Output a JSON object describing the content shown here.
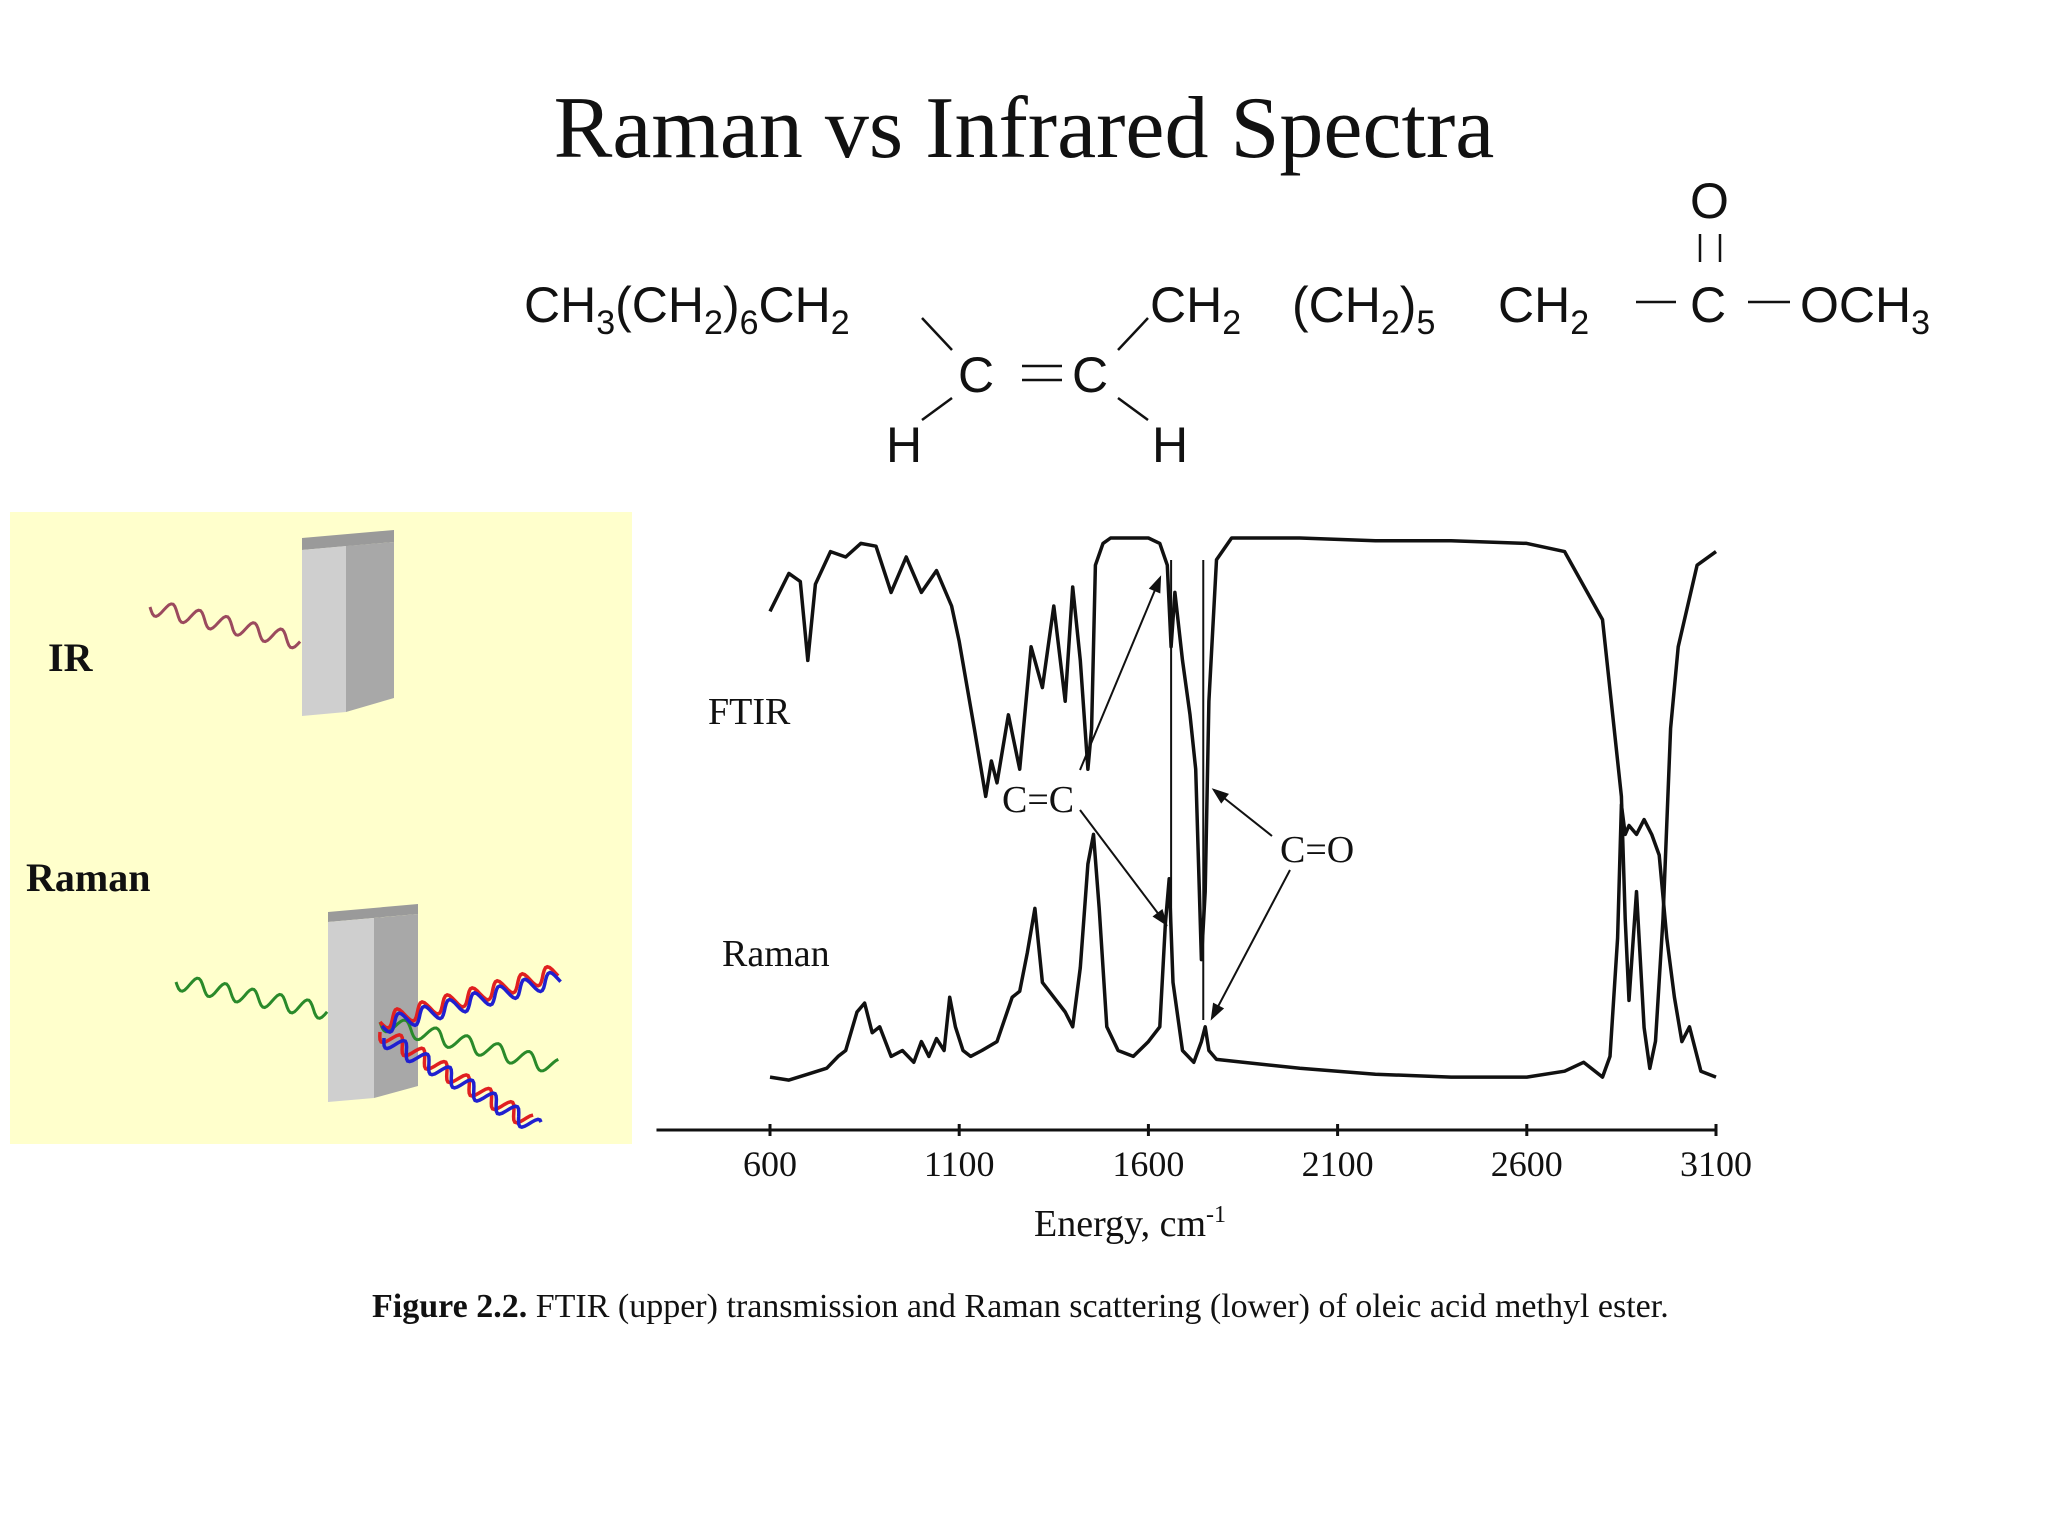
{
  "title": "Raman vs Infrared Spectra",
  "molecule": {
    "left_group": {
      "a": "CH",
      "a_sub": "3",
      "b": "(CH",
      "b_sub": "2",
      "c": ")",
      "c_sub": "6",
      "d": "CH",
      "d_sub": "2"
    },
    "alkene_left_c": "C",
    "alkene_right_c": "C",
    "h_left": "H",
    "h_right": "H",
    "right_group_1": {
      "a": "CH",
      "a_sub": "2"
    },
    "right_group_2": {
      "a": "(CH",
      "a_sub": "2",
      "b": ")",
      "b_sub": "5"
    },
    "right_group_3": {
      "a": "CH",
      "a_sub": "2"
    },
    "carbonyl_c": "C",
    "carbonyl_o": "O",
    "ester": {
      "a": "OCH",
      "a_sub": "3"
    }
  },
  "illustration": {
    "ir_label": "IR",
    "raman_label": "Raman",
    "colors": {
      "background": "#ffffcc",
      "ir_wave": "#9b4a5e",
      "incident_wave": "#2a8a2a",
      "red_wave": "#e02020",
      "blue_wave": "#2020d0",
      "block_front": "#cfcfcf",
      "block_side": "#a8a8a8"
    }
  },
  "chart_data": {
    "type": "line",
    "series": [
      {
        "name": "FTIR",
        "x": [
          600,
          650,
          680,
          700,
          720,
          760,
          800,
          840,
          880,
          920,
          960,
          1000,
          1040,
          1080,
          1100,
          1140,
          1170,
          1185,
          1200,
          1230,
          1260,
          1290,
          1320,
          1350,
          1380,
          1400,
          1420,
          1440,
          1450,
          1460,
          1480,
          1500,
          1560,
          1600,
          1630,
          1650,
          1660,
          1670,
          1690,
          1710,
          1725,
          1740,
          1750,
          1760,
          1780,
          1820,
          1900,
          2000,
          2200,
          2400,
          2600,
          2700,
          2800,
          2850,
          2860,
          2870,
          2890,
          2910,
          2925,
          2940,
          2960,
          2980,
          3000,
          3050,
          3100
        ],
        "y": [
          0.73,
          0.87,
          0.84,
          0.55,
          0.83,
          0.95,
          0.93,
          0.98,
          0.97,
          0.8,
          0.93,
          0.8,
          0.88,
          0.75,
          0.62,
          0.3,
          0.05,
          0.18,
          0.1,
          0.35,
          0.15,
          0.6,
          0.45,
          0.75,
          0.4,
          0.82,
          0.55,
          0.15,
          0.3,
          0.9,
          0.98,
          1.0,
          1.0,
          1.0,
          0.98,
          0.9,
          0.6,
          0.8,
          0.55,
          0.35,
          0.15,
          -0.55,
          -0.3,
          0.4,
          0.92,
          1.0,
          1.0,
          1.0,
          0.99,
          0.99,
          0.98,
          0.95,
          0.7,
          0.05,
          -0.4,
          -0.7,
          -0.3,
          -0.8,
          -0.95,
          -0.85,
          -0.4,
          0.3,
          0.6,
          0.9,
          0.95
        ],
        "color": "#111111"
      },
      {
        "name": "Raman",
        "x": [
          600,
          650,
          700,
          750,
          780,
          800,
          830,
          850,
          870,
          890,
          920,
          950,
          980,
          1000,
          1020,
          1040,
          1060,
          1075,
          1090,
          1110,
          1130,
          1160,
          1200,
          1240,
          1260,
          1280,
          1300,
          1320,
          1350,
          1380,
          1400,
          1420,
          1440,
          1455,
          1470,
          1490,
          1520,
          1560,
          1600,
          1630,
          1645,
          1655,
          1665,
          1690,
          1720,
          1740,
          1750,
          1760,
          1780,
          1850,
          2000,
          2100,
          2200,
          2400,
          2600,
          2700,
          2750,
          2800,
          2820,
          2840,
          2850,
          2860,
          2870,
          2890,
          2910,
          2930,
          2950,
          2970,
          2990,
          3010,
          3030,
          3060,
          3100
        ],
        "y": [
          0.03,
          0.02,
          0.04,
          0.06,
          0.1,
          0.12,
          0.25,
          0.28,
          0.18,
          0.2,
          0.1,
          0.12,
          0.08,
          0.15,
          0.1,
          0.16,
          0.12,
          0.3,
          0.2,
          0.12,
          0.1,
          0.12,
          0.15,
          0.3,
          0.32,
          0.45,
          0.6,
          0.35,
          0.3,
          0.25,
          0.2,
          0.4,
          0.75,
          0.85,
          0.6,
          0.2,
          0.12,
          0.1,
          0.15,
          0.2,
          0.55,
          0.7,
          0.35,
          0.12,
          0.08,
          0.15,
          0.2,
          0.12,
          0.09,
          0.08,
          0.06,
          0.05,
          0.04,
          0.03,
          0.03,
          0.05,
          0.08,
          0.03,
          0.1,
          0.5,
          0.95,
          0.85,
          0.88,
          0.85,
          0.9,
          0.85,
          0.78,
          0.5,
          0.3,
          0.15,
          0.2,
          0.05,
          0.03
        ],
        "color": "#111111"
      }
    ],
    "labels": {
      "ftir": "FTIR",
      "raman": "Raman",
      "cc": "C=C",
      "co": "C=O"
    },
    "xlabel": "Energy, cm",
    "xlabel_sup": "-1",
    "xticks": [
      600,
      1100,
      1600,
      2100,
      2600,
      3100
    ],
    "xlim": [
      300,
      3100
    ]
  },
  "caption": {
    "label": "Figure 2.2.",
    "text": " FTIR (upper) transmission and Raman scattering (lower) of oleic acid methyl ester."
  }
}
